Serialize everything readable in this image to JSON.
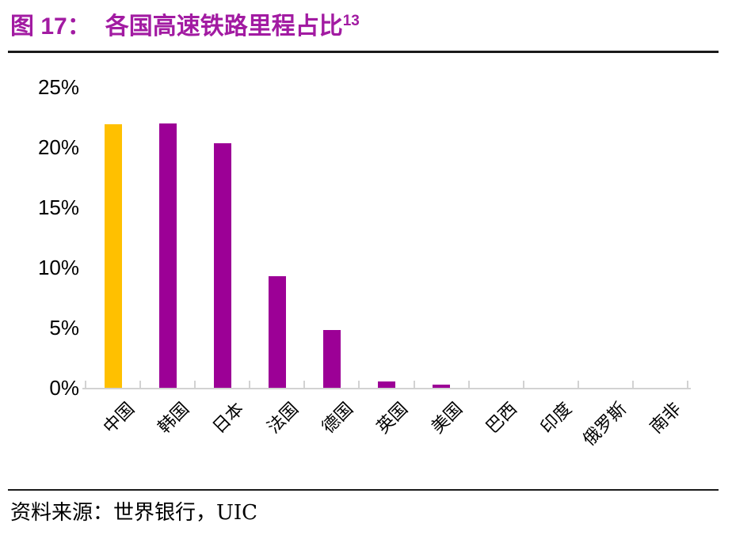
{
  "title": {
    "prefix": "图 17：",
    "text": "各国高速铁路里程占比",
    "superscript": "13"
  },
  "source": {
    "label": "资料来源：世界银行，UIC"
  },
  "colors": {
    "title": "#A21BA2",
    "bar_default": "#9C0096",
    "bar_highlight": "#FFC000",
    "axis": "#D2D2D2",
    "rule": "#1A1A1A"
  },
  "chart_data": {
    "type": "bar",
    "title": "各国高速铁路里程占比",
    "categories": [
      "中国",
      "韩国",
      "日本",
      "法国",
      "德国",
      "英国",
      "美国",
      "巴西",
      "印度",
      "俄罗斯",
      "南非"
    ],
    "values": [
      21.9,
      22.0,
      20.3,
      9.3,
      4.8,
      0.5,
      0.25,
      0,
      0,
      0,
      0
    ],
    "highlight_index": 0,
    "highlight_category": "中国",
    "unit": "%",
    "y_ticks": [
      "25%",
      "20%",
      "15%",
      "10%",
      "5%",
      "0%"
    ],
    "ylim": [
      0,
      25
    ],
    "xlabel": "",
    "ylabel": "",
    "grid": false,
    "legend": null
  }
}
